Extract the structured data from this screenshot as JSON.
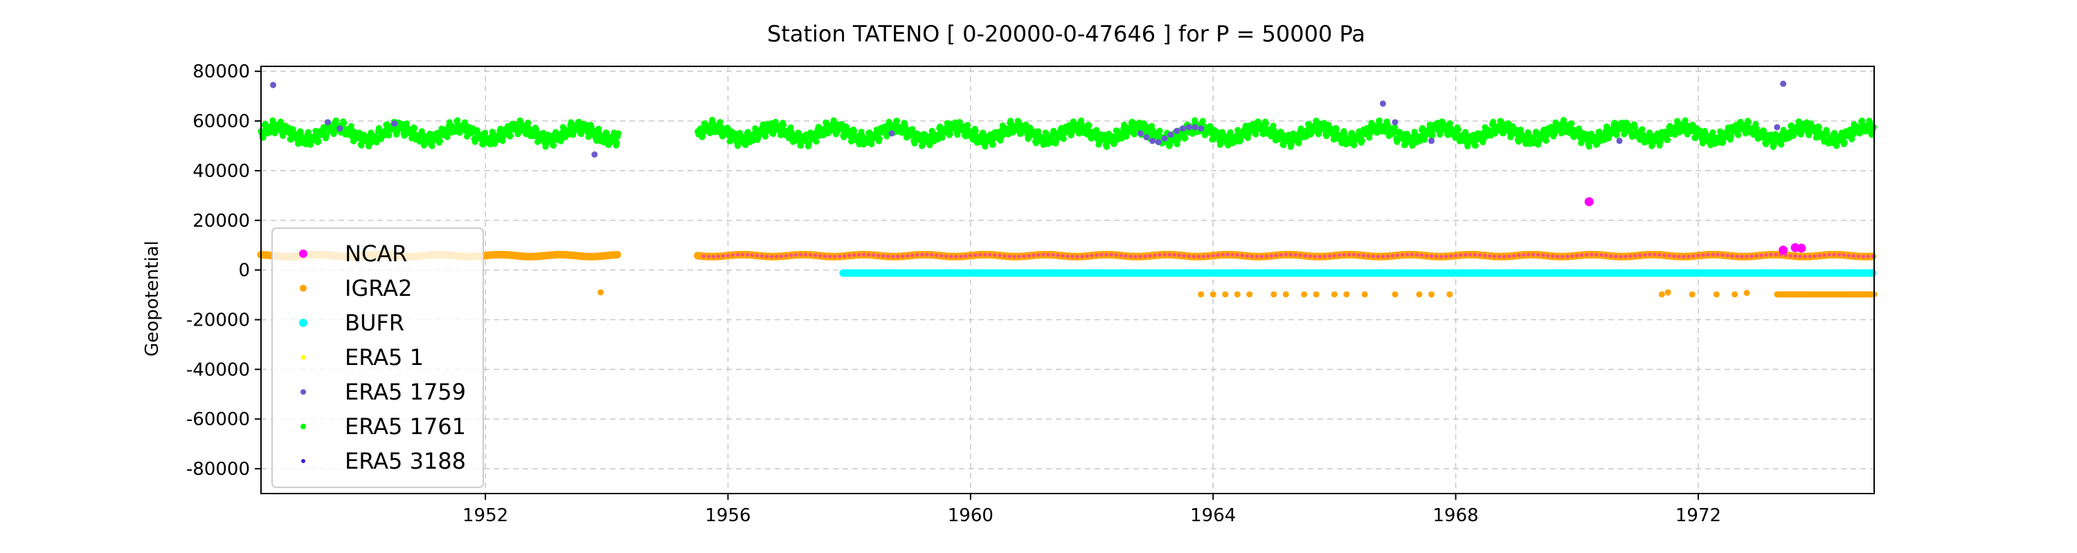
{
  "chart_data": {
    "type": "scatter",
    "title": "Station  TATENO [ 0-20000-0-47646 ]  for P = 50000 Pa",
    "xlabel": "",
    "ylabel": "Geopotential",
    "xlim": [
      1948.3,
      1974.9
    ],
    "ylim": [
      -90000,
      82000
    ],
    "x_ticks": [
      1952,
      1956,
      1960,
      1964,
      1968,
      1972
    ],
    "y_ticks": [
      80000,
      60000,
      40000,
      20000,
      0,
      -20000,
      -40000,
      -60000,
      -80000
    ],
    "grid": true,
    "legend_position": "center-left",
    "series": [
      {
        "name": "NCAR",
        "color": "#ff00ff",
        "points": [
          [
            1970.2,
            27500
          ],
          [
            1973.4,
            8000
          ],
          [
            1973.6,
            9000
          ],
          [
            1973.7,
            8800
          ]
        ]
      },
      {
        "name": "IGRA2",
        "color": "#ffa500",
        "segments": [
          {
            "x_start": 1948.3,
            "x_end": 1954.2,
            "y": 5800
          },
          {
            "x_start": 1955.5,
            "x_end": 1974.9,
            "y": 5800
          }
        ],
        "points": [
          [
            1953.9,
            -9000
          ],
          [
            1963.8,
            -9800
          ],
          [
            1964.0,
            -9800
          ],
          [
            1964.2,
            -9800
          ],
          [
            1964.4,
            -9800
          ],
          [
            1964.6,
            -9800
          ],
          [
            1965.0,
            -9800
          ],
          [
            1965.2,
            -9800
          ],
          [
            1965.5,
            -9800
          ],
          [
            1965.7,
            -9800
          ],
          [
            1966.0,
            -9800
          ],
          [
            1966.2,
            -9800
          ],
          [
            1966.5,
            -9800
          ],
          [
            1967.0,
            -9800
          ],
          [
            1967.4,
            -9800
          ],
          [
            1967.6,
            -9800
          ],
          [
            1967.9,
            -9800
          ],
          [
            1971.4,
            -9800
          ],
          [
            1971.5,
            -9000
          ],
          [
            1971.9,
            -9800
          ],
          [
            1972.3,
            -9800
          ],
          [
            1972.6,
            -9800
          ],
          [
            1972.8,
            -9200
          ]
        ],
        "dense_segment": {
          "x_start": 1973.3,
          "x_end": 1974.9,
          "y": -9800
        }
      },
      {
        "name": "BUFR",
        "color": "#00ffff",
        "segments": [
          {
            "x_start": 1957.9,
            "x_end": 1974.9,
            "y": -1200
          }
        ]
      },
      {
        "name": "ERA5 1",
        "color": "#ffff00",
        "points": []
      },
      {
        "name": "ERA5 1759",
        "color": "#6a5acd",
        "points": [
          [
            1948.5,
            74500
          ],
          [
            1949.4,
            59500
          ],
          [
            1949.6,
            57000
          ],
          [
            1950.5,
            59000
          ],
          [
            1953.8,
            46500
          ],
          [
            1958.7,
            55000
          ],
          [
            1962.8,
            55000
          ],
          [
            1962.9,
            53500
          ],
          [
            1963.0,
            52000
          ],
          [
            1963.1,
            51500
          ],
          [
            1963.2,
            53000
          ],
          [
            1963.3,
            54500
          ],
          [
            1963.4,
            56000
          ],
          [
            1963.5,
            57000
          ],
          [
            1963.6,
            57500
          ],
          [
            1963.7,
            57500
          ],
          [
            1963.8,
            57000
          ],
          [
            1966.8,
            67000
          ],
          [
            1967.0,
            59500
          ],
          [
            1967.6,
            52000
          ],
          [
            1973.3,
            57500
          ],
          [
            1973.4,
            75000
          ],
          [
            1970.7,
            52000
          ]
        ]
      },
      {
        "name": "ERA5 1761",
        "color": "#00ff00",
        "seasonal_series": [
          {
            "x_start": 1948.3,
            "x_end": 1954.2,
            "mean": 55000,
            "amplitude": 2500,
            "period": 1.0
          },
          {
            "x_start": 1955.5,
            "x_end": 1974.9,
            "mean": 55000,
            "amplitude": 2500,
            "period": 1.0
          }
        ]
      },
      {
        "name": "ERA5 3188",
        "color": "#3a1fd0",
        "points": []
      }
    ]
  }
}
